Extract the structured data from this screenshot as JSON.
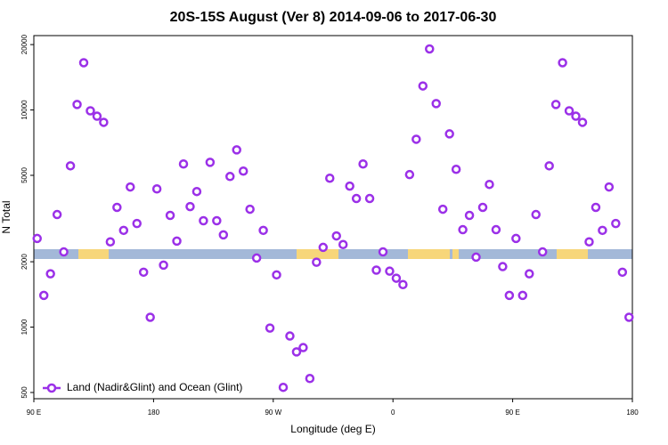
{
  "chart_data": {
    "type": "scatter",
    "title": "20S-15S August (Ver 8)   2014-09-06 to 2017-06-30",
    "x_label": "Longitude (deg E)",
    "y_label": "N Total",
    "log_y": true,
    "xlim": [
      90,
      540
    ],
    "ylim": [
      468,
      22000
    ],
    "xticks": [
      {
        "value": 90,
        "label": "90 E"
      },
      {
        "value": 180,
        "label": "180"
      },
      {
        "value": 270,
        "label": "90 W"
      },
      {
        "value": 360,
        "label": "0"
      },
      {
        "value": 450,
        "label": "90 E"
      },
      {
        "value": 540,
        "label": "180"
      }
    ],
    "yticks": [
      500,
      1000,
      2000,
      5000,
      10000,
      20000
    ],
    "legend": "bottom-left",
    "series": [
      {
        "name": "Land (Nadir&Glint) and Ocean (Glint)",
        "color": "#9b30e8",
        "x": [
          92.5,
          97.5,
          102.5,
          107.5,
          112.5,
          117.5,
          122.5,
          127.5,
          132.5,
          137.5,
          142.5,
          147.5,
          152.5,
          157.5,
          162.5,
          167.5,
          172.5,
          177.5,
          182.5,
          187.5,
          192.5,
          197.5,
          202.5,
          207.5,
          212.5,
          217.5,
          222.5,
          227.5,
          232.5,
          237.5,
          242.5,
          247.5,
          252.5,
          257.5,
          262.5,
          267.5,
          272.5,
          277.5,
          282.5,
          287.5,
          292.5,
          297.5,
          302.5,
          307.5,
          312.5,
          317.5,
          322.5,
          327.5,
          332.5,
          337.5,
          342.5,
          347.5,
          352.5,
          357.5,
          362.5,
          367.5,
          372.5,
          377.5,
          382.5,
          387.5,
          392.5,
          397.5,
          402.5,
          407.5,
          412.5,
          417.5,
          422.5,
          427.5,
          432.5,
          437.5,
          442.5,
          447.5,
          452.5,
          457.5,
          462.5,
          467.5,
          472.5,
          477.5,
          482.5,
          487.5,
          492.5,
          497.5,
          502.5,
          507.5,
          512.5,
          517.5,
          522.5,
          527.5,
          532.5,
          537.5
        ],
        "values": [
          2560,
          1400,
          1760,
          3300,
          2220,
          5530,
          10600,
          16500,
          9910,
          9360,
          8770,
          2470,
          3560,
          2790,
          4420,
          3000,
          1790,
          1110,
          4330,
          1930,
          3270,
          2490,
          5640,
          3590,
          4210,
          3090,
          5740,
          3090,
          2660,
          4940,
          6550,
          5230,
          3490,
          2080,
          2790,
          990,
          1740,
          528,
          910,
          769,
          805,
          580,
          1990,
          2330,
          4850,
          2630,
          2400,
          4460,
          3910,
          5640,
          3910,
          1830,
          2220,
          1810,
          1680,
          1570,
          5040,
          7330,
          12900,
          19100,
          10700,
          3490,
          7760,
          5330,
          2810,
          3270,
          2100,
          3560,
          4540,
          2810,
          1900,
          1400,
          2560,
          1400,
          1760,
          3300,
          2220,
          5530,
          10600,
          16500,
          9910,
          9360,
          8770,
          2470,
          3560,
          2790,
          4420,
          3000,
          1790,
          1110
        ]
      }
    ]
  }
}
